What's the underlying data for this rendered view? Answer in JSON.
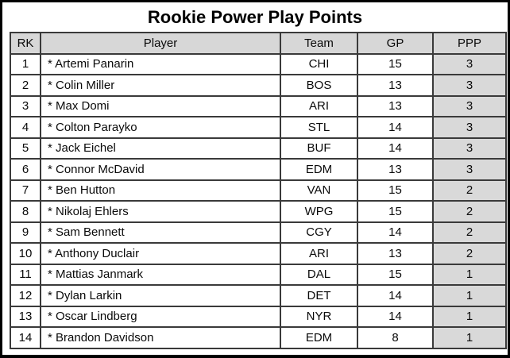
{
  "title": "Rookie Power Play Points",
  "table": {
    "headers": {
      "rk": "RK",
      "player": "Player",
      "team": "Team",
      "gp": "GP",
      "ppp": "PPP"
    },
    "rows": [
      {
        "rk": "1",
        "player": "* Artemi Panarin",
        "team": "CHI",
        "gp": "15",
        "ppp": "3"
      },
      {
        "rk": "2",
        "player": "* Colin Miller",
        "team": "BOS",
        "gp": "13",
        "ppp": "3"
      },
      {
        "rk": "3",
        "player": "* Max Domi",
        "team": "ARI",
        "gp": "13",
        "ppp": "3"
      },
      {
        "rk": "4",
        "player": "* Colton Parayko",
        "team": "STL",
        "gp": "14",
        "ppp": "3"
      },
      {
        "rk": "5",
        "player": "* Jack Eichel",
        "team": "BUF",
        "gp": "14",
        "ppp": "3"
      },
      {
        "rk": "6",
        "player": "* Connor McDavid",
        "team": "EDM",
        "gp": "13",
        "ppp": "3"
      },
      {
        "rk": "7",
        "player": "* Ben Hutton",
        "team": "VAN",
        "gp": "15",
        "ppp": "2"
      },
      {
        "rk": "8",
        "player": "* Nikolaj Ehlers",
        "team": "WPG",
        "gp": "15",
        "ppp": "2"
      },
      {
        "rk": "9",
        "player": "* Sam Bennett",
        "team": "CGY",
        "gp": "14",
        "ppp": "2"
      },
      {
        "rk": "10",
        "player": "* Anthony Duclair",
        "team": "ARI",
        "gp": "13",
        "ppp": "2"
      },
      {
        "rk": "11",
        "player": "* Mattias Janmark",
        "team": "DAL",
        "gp": "15",
        "ppp": "1"
      },
      {
        "rk": "12",
        "player": "* Dylan Larkin",
        "team": "DET",
        "gp": "14",
        "ppp": "1"
      },
      {
        "rk": "13",
        "player": "* Oscar Lindberg",
        "team": "NYR",
        "gp": "14",
        "ppp": "1"
      },
      {
        "rk": "14",
        "player": "* Brandon Davidson",
        "team": "EDM",
        "gp": "8",
        "ppp": "1"
      }
    ]
  },
  "colors": {
    "header_bg": "#d7d7d7",
    "ppp_column_bg": "#d9d9d9",
    "grid_border": "#3a3a3a",
    "frame_border": "#000000",
    "text": "#0a0a0a"
  },
  "chart_data": {
    "type": "table",
    "title": "Rookie Power Play Points",
    "columns": [
      "RK",
      "Player",
      "Team",
      "GP",
      "PPP"
    ],
    "rows": [
      [
        1,
        "* Artemi Panarin",
        "CHI",
        15,
        3
      ],
      [
        2,
        "* Colin Miller",
        "BOS",
        13,
        3
      ],
      [
        3,
        "* Max Domi",
        "ARI",
        13,
        3
      ],
      [
        4,
        "* Colton Parayko",
        "STL",
        14,
        3
      ],
      [
        5,
        "* Jack Eichel",
        "BUF",
        14,
        3
      ],
      [
        6,
        "* Connor McDavid",
        "EDM",
        13,
        3
      ],
      [
        7,
        "* Ben Hutton",
        "VAN",
        15,
        2
      ],
      [
        8,
        "* Nikolaj Ehlers",
        "WPG",
        15,
        2
      ],
      [
        9,
        "* Sam Bennett",
        "CGY",
        14,
        2
      ],
      [
        10,
        "* Anthony Duclair",
        "ARI",
        13,
        2
      ],
      [
        11,
        "* Mattias Janmark",
        "DAL",
        15,
        1
      ],
      [
        12,
        "* Dylan Larkin",
        "DET",
        14,
        1
      ],
      [
        13,
        "* Oscar Lindberg",
        "NYR",
        14,
        1
      ],
      [
        14,
        "* Brandon Davidson",
        "EDM",
        8,
        1
      ]
    ],
    "layout": {
      "header_shaded": true,
      "ppp_column_shaded": true,
      "grid": true
    }
  }
}
